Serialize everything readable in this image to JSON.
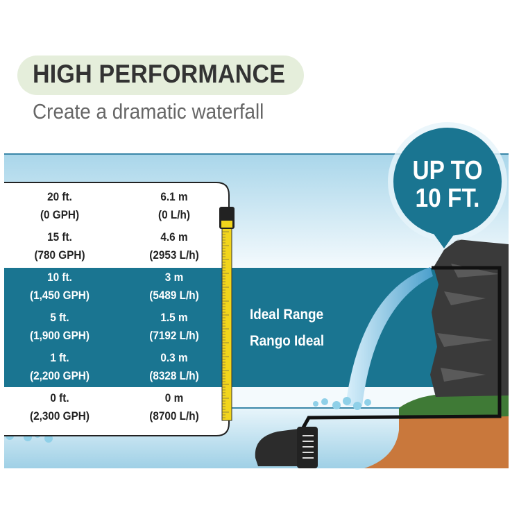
{
  "header": {
    "title": "HIGH PERFORMANCE",
    "subtitle": "Create a dramatic waterfall"
  },
  "colors": {
    "teal": "#1a7591",
    "pill": "#e5eedb",
    "tape": "#f2d51c",
    "soil": "#c9783c",
    "grass": "#3f7a36"
  },
  "table": {
    "rows": [
      {
        "height_ft": "20 ft.",
        "flow_gph": "(0 GPH)",
        "height_m": "6.1 m",
        "flow_lh": "(0 L/h)",
        "ideal": false
      },
      {
        "height_ft": "15 ft.",
        "flow_gph": "(780 GPH)",
        "height_m": "4.6 m",
        "flow_lh": "(2953 L/h)",
        "ideal": false
      },
      {
        "height_ft": "10 ft.",
        "flow_gph": "(1,450 GPH)",
        "height_m": "3 m",
        "flow_lh": "(5489 L/h)",
        "ideal": true
      },
      {
        "height_ft": "5 ft.",
        "flow_gph": "(1,900 GPH)",
        "height_m": "1.5 m",
        "flow_lh": "(7192 L/h)",
        "ideal": true
      },
      {
        "height_ft": "1 ft.",
        "flow_gph": "(2,200 GPH)",
        "height_m": "0.3 m",
        "flow_lh": "(8328 L/h)",
        "ideal": true
      },
      {
        "height_ft": "0 ft.",
        "flow_gph": "(2,300 GPH)",
        "height_m": "0 m",
        "flow_lh": "(8700 L/h)",
        "ideal": false
      }
    ]
  },
  "ideal_range": {
    "en": "Ideal Range",
    "es": "Rango Ideal"
  },
  "callout": {
    "line1": "UP TO",
    "line2": "10 FT."
  },
  "icons": [
    "tape-measure-icon",
    "pump-icon",
    "rock-waterfall-icon",
    "bubbles-icon"
  ]
}
